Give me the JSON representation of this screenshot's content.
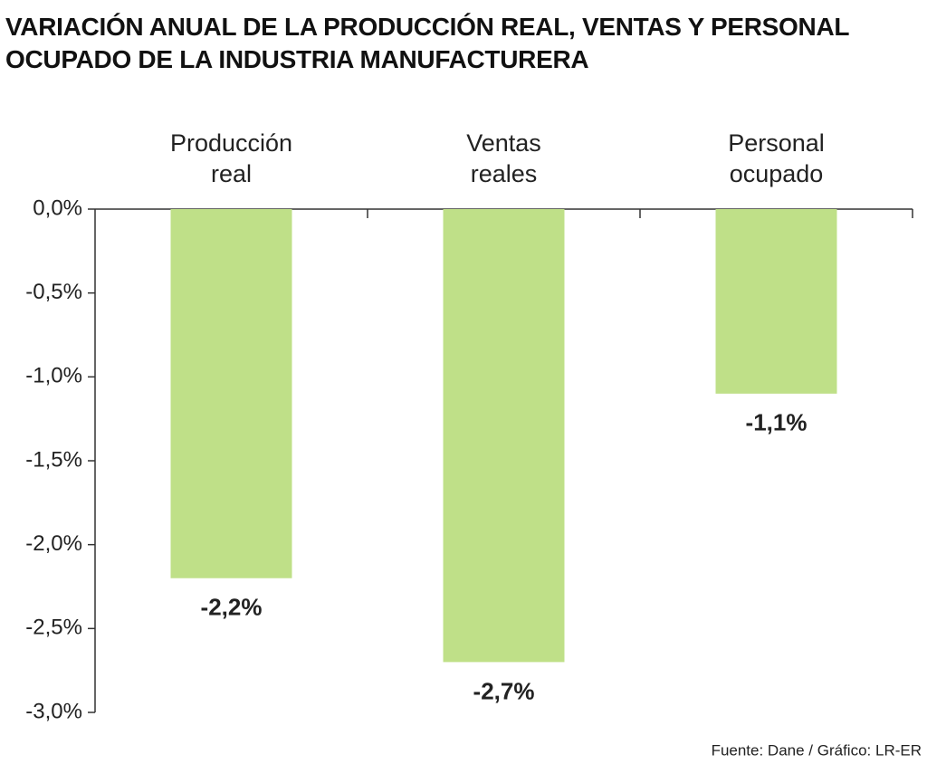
{
  "chart_data": {
    "type": "bar",
    "title": "VARIACIÓN ANUAL DE LA PRODUCCIÓN REAL, VENTAS Y PERSONAL OCUPADO DE LA INDUSTRIA MANUFACTURERA",
    "categories": [
      "Producción real",
      "Ventas reales",
      "Personal ocupado"
    ],
    "values": [
      -2.2,
      -2.7,
      -1.1
    ],
    "value_labels": [
      "-2,2%",
      "-2,7%",
      "-1,1%"
    ],
    "color": "#bfe088",
    "ylim": [
      -3,
      0
    ],
    "yticks": [
      {
        "value": 0,
        "label": "0,0%"
      },
      {
        "value": -0.5,
        "label": "-0,5%"
      },
      {
        "value": -1,
        "label": "-1,0%"
      },
      {
        "value": -1.5,
        "label": "-1,5%"
      },
      {
        "value": -2,
        "label": "-2,0%"
      },
      {
        "value": -2.5,
        "label": "-2,5%"
      },
      {
        "value": -3,
        "label": "-3,0%"
      }
    ],
    "source": "Fuente: Dane / Gráfico: LR-ER"
  }
}
